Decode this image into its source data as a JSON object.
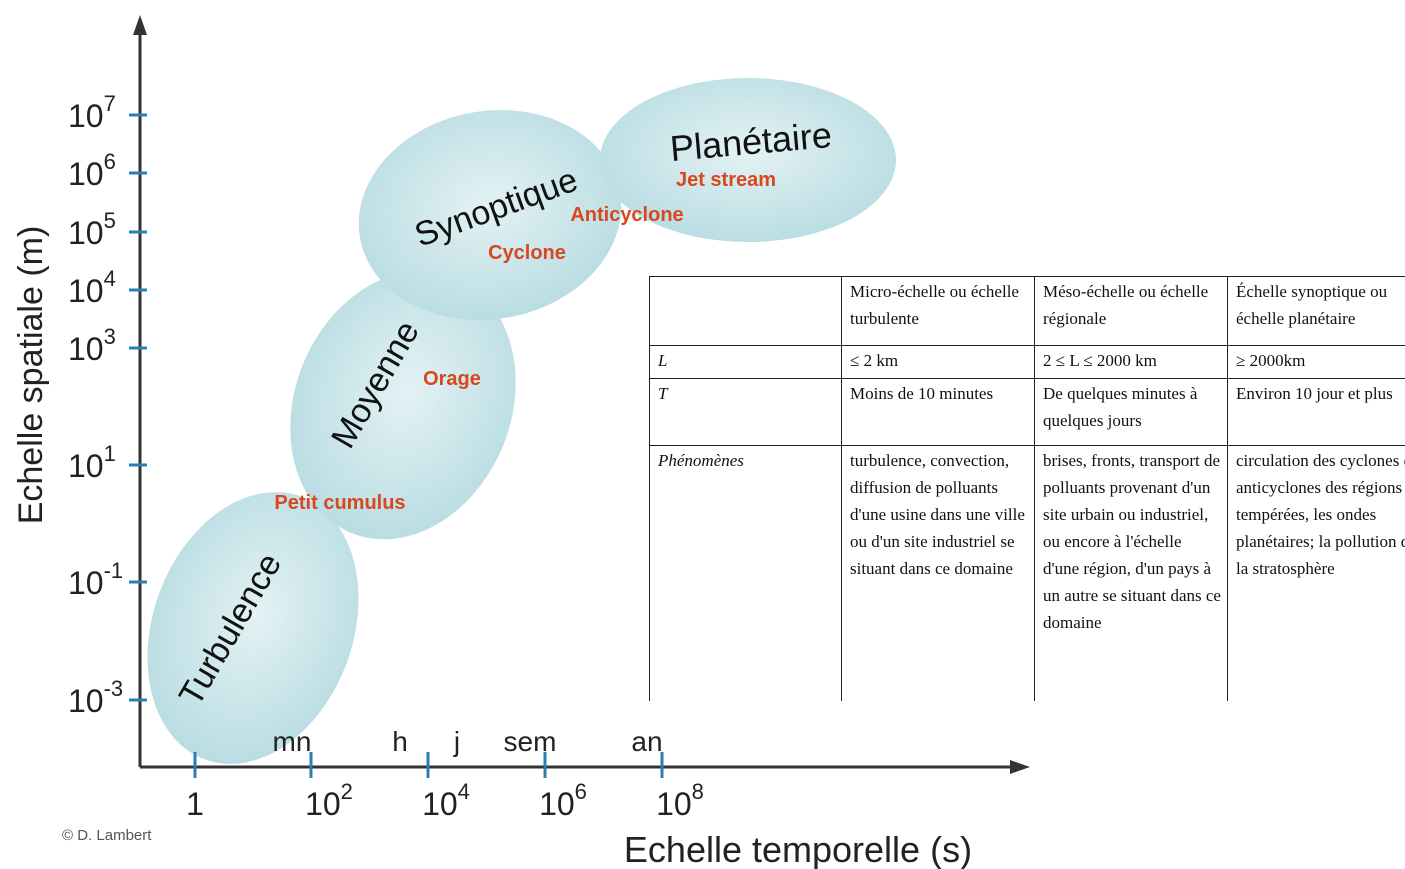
{
  "y_axis": {
    "title": "Echelle spatiale (m)",
    "ticks": [
      {
        "base": "10",
        "exp": "7"
      },
      {
        "base": "10",
        "exp": "6"
      },
      {
        "base": "10",
        "exp": "5"
      },
      {
        "base": "10",
        "exp": "4"
      },
      {
        "base": "10",
        "exp": "3"
      },
      {
        "base": "10",
        "exp": "1"
      },
      {
        "base": "10",
        "exp": "-1"
      },
      {
        "base": "10",
        "exp": "-3"
      }
    ]
  },
  "x_axis": {
    "title": "Echelle temporelle (s)",
    "ticks": [
      {
        "base": "1"
      },
      {
        "base": "10",
        "exp": "2"
      },
      {
        "base": "10",
        "exp": "4"
      },
      {
        "base": "10",
        "exp": "6"
      },
      {
        "base": "10",
        "exp": "8"
      }
    ],
    "units": [
      "mn",
      "h",
      "j",
      "sem",
      "an"
    ]
  },
  "zones": [
    "Turbulence",
    "Moyenne",
    "Synoptique",
    "Planétaire"
  ],
  "phenomena": [
    "Petit cumulus",
    "Orage",
    "Cyclone",
    "Anticyclone",
    "Jet stream"
  ],
  "credit": "© D. Lambert",
  "table": {
    "header": [
      "",
      "Micro-échelle ou échelle turbulente",
      "Méso-échelle ou échelle régionale",
      "Échelle synoptique ou échelle planétaire"
    ],
    "rows": [
      [
        "L",
        "≤ 2 km",
        "2 ≤ L ≤ 2000 km",
        "≥ 2000km"
      ],
      [
        "T",
        "Moins de 10 minutes",
        "De quelques minutes à quelques jours",
        "Environ 10 jour et plus"
      ],
      [
        "Phénomènes",
        "turbulence, convection, diffusion de polluants d'une usine dans une ville ou d'un site industriel se situant dans ce domaine",
        "brises, fronts, transport de polluants provenant d'un site urbain ou industriel, ou encore à l'échelle d'une région, d'un pays à un autre se situant dans ce domaine",
        "circulation des cyclones et anticyclones des régions tempérées, les ondes planétaires; la pollution de la stratosphère"
      ]
    ]
  }
}
